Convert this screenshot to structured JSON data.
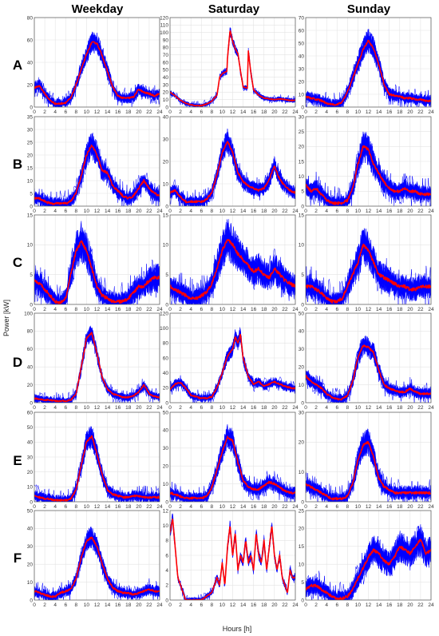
{
  "chart_data": {
    "type": "line",
    "layout": "grid",
    "columns": [
      "Weekday",
      "Saturday",
      "Sunday"
    ],
    "rows": [
      "A",
      "B",
      "C",
      "D",
      "E",
      "F"
    ],
    "xlabel": "Hours [h]",
    "ylabel": "Power [kW]",
    "xlim": [
      0,
      24
    ],
    "x_ticks": [
      0,
      2,
      4,
      6,
      8,
      10,
      12,
      14,
      16,
      18,
      20,
      22,
      24
    ],
    "grid": true,
    "colors": {
      "envelope": "#0000ff",
      "mean": "#ff0000"
    },
    "panels": [
      {
        "row": "A",
        "col": "Weekday",
        "ylim": [
          0,
          80
        ],
        "y_ticks": [
          0,
          20,
          40,
          60,
          80
        ],
        "band": 6,
        "x": [
          0,
          1,
          2,
          3,
          4,
          5,
          6,
          7,
          8,
          9,
          10,
          11,
          12,
          13,
          14,
          15,
          16,
          17,
          18,
          19,
          20,
          21,
          22,
          23,
          24
        ],
        "mean": [
          17,
          19,
          12,
          6,
          3,
          3,
          4,
          8,
          20,
          34,
          47,
          58,
          57,
          46,
          32,
          18,
          10,
          8,
          8,
          9,
          16,
          13,
          12,
          10,
          12
        ]
      },
      {
        "row": "A",
        "col": "Saturday",
        "ylim": [
          0,
          120
        ],
        "y_ticks": [
          0,
          10,
          20,
          30,
          40,
          50,
          60,
          70,
          80,
          90,
          100,
          110,
          120
        ],
        "band": 4,
        "x": [
          0,
          1,
          2,
          3,
          4,
          5,
          6,
          7,
          8,
          9,
          9.5,
          10,
          10.9,
          11,
          11.5,
          12,
          12.5,
          13,
          13.5,
          14,
          14.8,
          15,
          15.5,
          16,
          17,
          18,
          19,
          20,
          21,
          22,
          23,
          24
        ],
        "mean": [
          20,
          15,
          9,
          5,
          3,
          2,
          2,
          4,
          8,
          16,
          40,
          45,
          48,
          65,
          103,
          88,
          78,
          72,
          48,
          27,
          25,
          75,
          45,
          23,
          16,
          12,
          11,
          10,
          11,
          10,
          9,
          9
        ]
      },
      {
        "row": "A",
        "col": "Sunday",
        "ylim": [
          0,
          70
        ],
        "y_ticks": [
          0,
          10,
          20,
          30,
          40,
          50,
          60,
          70
        ],
        "band": 6,
        "x": [
          0,
          1,
          2,
          3,
          4,
          5,
          6,
          7,
          8,
          9,
          10,
          11,
          12,
          13,
          14,
          15,
          16,
          17,
          18,
          19,
          20,
          21,
          22,
          23,
          24
        ],
        "mean": [
          8,
          7,
          6,
          5,
          3,
          2,
          2,
          4,
          12,
          22,
          34,
          45,
          52,
          46,
          33,
          18,
          10,
          9,
          8,
          7,
          7,
          6,
          6,
          5,
          5
        ]
      },
      {
        "row": "B",
        "col": "Weekday",
        "ylim": [
          0,
          35
        ],
        "y_ticks": [
          0,
          5,
          10,
          15,
          20,
          25,
          30,
          35
        ],
        "band": 3.5,
        "x": [
          0,
          1,
          2,
          3,
          4,
          5,
          6,
          7,
          8,
          9,
          10,
          11,
          12,
          13,
          14,
          15,
          16,
          17,
          18,
          19,
          20,
          21,
          22,
          23,
          24
        ],
        "mean": [
          3,
          3,
          2,
          1,
          1,
          1,
          1,
          2,
          5,
          12,
          20,
          24,
          20,
          14,
          13,
          8,
          6,
          4,
          3,
          4,
          7,
          10,
          7,
          5,
          4
        ]
      },
      {
        "row": "B",
        "col": "Saturday",
        "ylim": [
          0,
          40
        ],
        "y_ticks": [
          0,
          10,
          20,
          30,
          40
        ],
        "band": 3.5,
        "x": [
          0,
          1,
          2,
          3,
          4,
          5,
          6,
          7,
          8,
          9,
          10,
          11,
          12,
          13,
          14,
          15,
          16,
          17,
          18,
          19,
          20,
          21,
          22,
          23,
          24
        ],
        "mean": [
          6,
          7,
          4,
          2,
          2,
          2,
          2,
          3,
          6,
          14,
          24,
          29,
          24,
          15,
          11,
          9,
          8,
          7,
          8,
          12,
          18,
          12,
          9,
          7,
          6
        ]
      },
      {
        "row": "B",
        "col": "Sunday",
        "ylim": [
          0,
          30
        ],
        "y_ticks": [
          0,
          5,
          10,
          15,
          20,
          25,
          30
        ],
        "band": 3.5,
        "x": [
          0,
          1,
          2,
          3,
          4,
          5,
          6,
          7,
          8,
          9,
          10,
          11,
          12,
          13,
          14,
          15,
          16,
          17,
          18,
          19,
          20,
          21,
          22,
          23,
          24
        ],
        "mean": [
          7,
          5,
          6,
          4,
          2,
          1,
          1,
          1,
          2,
          6,
          14,
          20,
          19,
          14,
          11,
          8,
          6,
          5,
          5,
          6,
          5,
          5,
          4,
          4,
          4
        ]
      },
      {
        "row": "C",
        "col": "Weekday",
        "ylim": [
          0,
          15
        ],
        "y_ticks": [
          0,
          5,
          10,
          15
        ],
        "band": 2.2,
        "x": [
          0,
          1,
          2,
          3,
          4,
          5,
          6,
          7,
          8,
          9,
          10,
          11,
          12,
          13,
          14,
          15,
          16,
          17,
          18,
          19,
          20,
          21,
          22,
          23,
          24
        ],
        "mean": [
          4,
          3.5,
          2.5,
          1.5,
          0.5,
          0.3,
          1,
          5,
          9,
          10.5,
          9,
          6,
          3,
          1.5,
          1,
          0.5,
          0.5,
          0.5,
          1,
          2,
          3,
          3,
          4,
          4.5,
          4.5
        ]
      },
      {
        "row": "C",
        "col": "Saturday",
        "ylim": [
          0,
          15
        ],
        "y_ticks": [
          0,
          5,
          10,
          15
        ],
        "band": 2.2,
        "x": [
          0,
          1,
          2,
          3,
          4,
          5,
          6,
          7,
          8,
          9,
          10,
          11,
          12,
          13,
          14,
          15,
          16,
          17,
          18,
          19,
          20,
          21,
          22,
          23,
          24
        ],
        "mean": [
          3,
          2.5,
          2,
          1.5,
          1,
          1,
          1.5,
          2,
          3.5,
          6,
          9,
          11,
          10,
          8.5,
          7.5,
          6.5,
          5.5,
          6,
          5,
          4.5,
          6,
          5,
          4,
          3.5,
          3
        ]
      },
      {
        "row": "C",
        "col": "Sunday",
        "ylim": [
          0,
          15
        ],
        "y_ticks": [
          0,
          5,
          10,
          15
        ],
        "band": 2.2,
        "x": [
          0,
          1,
          2,
          3,
          4,
          5,
          6,
          7,
          8,
          9,
          10,
          11,
          12,
          13,
          14,
          15,
          16,
          17,
          18,
          19,
          20,
          21,
          22,
          23,
          24
        ],
        "mean": [
          3,
          3,
          2.5,
          2,
          1,
          0.5,
          0.5,
          1,
          3,
          5,
          7,
          10,
          9,
          7,
          5,
          4.5,
          4,
          3.5,
          3,
          3,
          2.5,
          2.5,
          3,
          3,
          3
        ]
      },
      {
        "row": "D",
        "col": "Weekday",
        "ylim": [
          0,
          100
        ],
        "y_ticks": [
          0,
          20,
          40,
          60,
          80,
          100
        ],
        "band": 6,
        "x": [
          0,
          1,
          2,
          3,
          4,
          5,
          6,
          7,
          8,
          9,
          10,
          11,
          12,
          13,
          14,
          15,
          16,
          17,
          18,
          19,
          20,
          21,
          22,
          23,
          24
        ],
        "mean": [
          5,
          4,
          3,
          3,
          2,
          2,
          2,
          3,
          10,
          40,
          72,
          78,
          55,
          28,
          15,
          10,
          8,
          6,
          6,
          8,
          12,
          20,
          10,
          7,
          6
        ]
      },
      {
        "row": "D",
        "col": "Saturday",
        "ylim": [
          0,
          120
        ],
        "y_ticks": [
          0,
          20,
          40,
          60,
          80,
          100,
          120
        ],
        "band": 7,
        "x": [
          0,
          1,
          2,
          3,
          4,
          5,
          6,
          7,
          8,
          9,
          10,
          11,
          12,
          12.5,
          13,
          13.5,
          14,
          15,
          16,
          17,
          18,
          19,
          20,
          21,
          22,
          23,
          24
        ],
        "mean": [
          18,
          25,
          27,
          20,
          10,
          8,
          6,
          6,
          8,
          20,
          40,
          62,
          72,
          88,
          80,
          92,
          60,
          35,
          25,
          28,
          22,
          25,
          28,
          25,
          22,
          20,
          19
        ]
      },
      {
        "row": "D",
        "col": "Sunday",
        "ylim": [
          0,
          50
        ],
        "y_ticks": [
          0,
          10,
          20,
          30,
          40,
          50
        ],
        "band": 4,
        "x": [
          0,
          1,
          2,
          3,
          4,
          5,
          6,
          7,
          8,
          9,
          10,
          11,
          12,
          13,
          14,
          15,
          16,
          17,
          18,
          19,
          20,
          21,
          22,
          23,
          24
        ],
        "mean": [
          15,
          12,
          10,
          8,
          5,
          3,
          2,
          2,
          4,
          12,
          25,
          32,
          31,
          28,
          18,
          10,
          8,
          7,
          6,
          6,
          8,
          6,
          5,
          5,
          5
        ]
      },
      {
        "row": "E",
        "col": "Weekday",
        "ylim": [
          0,
          60
        ],
        "y_ticks": [
          0,
          10,
          20,
          30,
          40,
          50,
          60
        ],
        "band": 5,
        "x": [
          0,
          1,
          2,
          3,
          4,
          5,
          6,
          7,
          8,
          9,
          10,
          11,
          12,
          13,
          14,
          15,
          16,
          17,
          18,
          19,
          20,
          21,
          22,
          23,
          24
        ],
        "mean": [
          4,
          3,
          2,
          2,
          1,
          1,
          1,
          2,
          8,
          25,
          40,
          44,
          32,
          18,
          8,
          5,
          4,
          3,
          3,
          4,
          4,
          3,
          3,
          3,
          3
        ]
      },
      {
        "row": "E",
        "col": "Saturday",
        "ylim": [
          0,
          50
        ],
        "y_ticks": [
          0,
          10,
          20,
          30,
          40,
          50
        ],
        "band": 4.5,
        "x": [
          0,
          1,
          2,
          3,
          4,
          5,
          6,
          7,
          8,
          9,
          10,
          11,
          12,
          13,
          14,
          15,
          16,
          17,
          18,
          19,
          20,
          21,
          22,
          23,
          24
        ],
        "mean": [
          5,
          4,
          3,
          2,
          2,
          2,
          2,
          3,
          8,
          18,
          28,
          36,
          34,
          22,
          12,
          8,
          7,
          7,
          9,
          11,
          10,
          8,
          6,
          5,
          5
        ]
      },
      {
        "row": "E",
        "col": "Sunday",
        "ylim": [
          0,
          30
        ],
        "y_ticks": [
          0,
          10,
          20,
          30
        ],
        "band": 3,
        "x": [
          0,
          1,
          2,
          3,
          4,
          5,
          6,
          7,
          8,
          9,
          10,
          11,
          12,
          13,
          14,
          15,
          16,
          17,
          18,
          19,
          20,
          21,
          22,
          23,
          24
        ],
        "mean": [
          6,
          5,
          4,
          3,
          2,
          1,
          1,
          1,
          2,
          6,
          14,
          19,
          20,
          15,
          8,
          5,
          4,
          3,
          3,
          3,
          3,
          3,
          3,
          3,
          3
        ]
      },
      {
        "row": "F",
        "col": "Weekday",
        "ylim": [
          0,
          50
        ],
        "y_ticks": [
          0,
          10,
          20,
          30,
          40,
          50
        ],
        "band": 4,
        "x": [
          0,
          1,
          2,
          3,
          4,
          5,
          6,
          7,
          8,
          9,
          10,
          11,
          12,
          13,
          14,
          15,
          16,
          17,
          18,
          19,
          20,
          21,
          22,
          23,
          24
        ],
        "mean": [
          5,
          4,
          3,
          2,
          2,
          4,
          5,
          6,
          12,
          24,
          33,
          35,
          30,
          20,
          12,
          7,
          5,
          4,
          4,
          3,
          4,
          5,
          6,
          5,
          5
        ]
      },
      {
        "row": "F",
        "col": "Saturday",
        "ylim": [
          0,
          12
        ],
        "y_ticks": [
          0,
          2,
          4,
          6,
          8,
          10,
          12
        ],
        "band": 0.5,
        "x": [
          0,
          0.5,
          1,
          1.5,
          2,
          2.5,
          3,
          4,
          5,
          6,
          7,
          8,
          9,
          9.5,
          10,
          10.5,
          11,
          11.5,
          12,
          12.5,
          13,
          13.5,
          14,
          14.5,
          15,
          15.5,
          16,
          16.5,
          17,
          17.5,
          18,
          18.5,
          19,
          19.5,
          20,
          20.5,
          21,
          21.5,
          22,
          22.5,
          23,
          23.5,
          24
        ],
        "mean": [
          9,
          11,
          7,
          3,
          2,
          1,
          0,
          0,
          0,
          0,
          0.5,
          1,
          3,
          2,
          5,
          2,
          7,
          10,
          6,
          9,
          4,
          6,
          5,
          8,
          5,
          6,
          4,
          9,
          6,
          5,
          8,
          4,
          7,
          10,
          6,
          4,
          6,
          3,
          2,
          1,
          4,
          3,
          3
        ]
      },
      {
        "row": "F",
        "col": "Sunday",
        "ylim": [
          0,
          25
        ],
        "y_ticks": [
          0,
          5,
          10,
          15,
          20,
          25
        ],
        "band": 3,
        "x": [
          0,
          1,
          2,
          3,
          4,
          5,
          6,
          7,
          8,
          9,
          10,
          11,
          12,
          13,
          14,
          15,
          16,
          17,
          18,
          19,
          20,
          21,
          22,
          23,
          24
        ],
        "mean": [
          3,
          4,
          4,
          3,
          2,
          1,
          0.5,
          0.5,
          1,
          3,
          6,
          9,
          12,
          14,
          13,
          11,
          10,
          12,
          15,
          14,
          13,
          15,
          17,
          13,
          14
        ]
      }
    ]
  }
}
